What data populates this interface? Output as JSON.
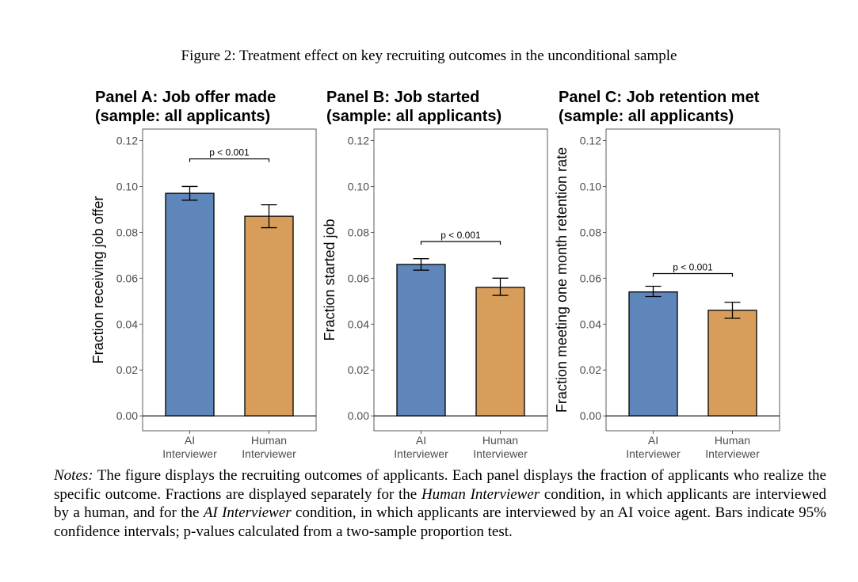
{
  "figure": {
    "caption": "Figure 2: Treatment effect on key recruiting outcomes in the unconditional sample"
  },
  "colors": {
    "ai_bar": "#5f86ba",
    "human_bar": "#d99d5b"
  },
  "chart_data": [
    {
      "type": "bar",
      "title_line1": "Panel A: Job offer made",
      "title_line2": "(sample: all applicants)",
      "ylabel": "Fraction receiving job offer",
      "ylim": [
        -0.0065,
        0.125
      ],
      "yticks": [
        "0.00",
        "0.02",
        "0.04",
        "0.06",
        "0.08",
        "0.10",
        "0.12"
      ],
      "categories": [
        [
          "AI",
          "Interviewer"
        ],
        [
          "Human",
          "Interviewer"
        ]
      ],
      "values": [
        0.097,
        0.087
      ],
      "ci_low": [
        0.094,
        0.082
      ],
      "ci_high": [
        0.1,
        0.092
      ],
      "annotation": "p < 0.001",
      "annotation_y": 0.112
    },
    {
      "type": "bar",
      "title_line1": "Panel B: Job started",
      "title_line2": "(sample: all applicants)",
      "ylabel": "Fraction started job",
      "ylim": [
        -0.0065,
        0.125
      ],
      "yticks": [
        "0.00",
        "0.02",
        "0.04",
        "0.06",
        "0.08",
        "0.10",
        "0.12"
      ],
      "categories": [
        [
          "AI",
          "Interviewer"
        ],
        [
          "Human",
          "Interviewer"
        ]
      ],
      "values": [
        0.066,
        0.056
      ],
      "ci_low": [
        0.0635,
        0.0525
      ],
      "ci_high": [
        0.0685,
        0.06
      ],
      "annotation": "p < 0.001",
      "annotation_y": 0.076
    },
    {
      "type": "bar",
      "title_line1": "Panel C: Job retention met",
      "title_line2": "(sample: all applicants)",
      "ylabel": "Fraction meeting one month retention rate",
      "ylim": [
        -0.0065,
        0.125
      ],
      "yticks": [
        "0.00",
        "0.02",
        "0.04",
        "0.06",
        "0.08",
        "0.10",
        "0.12"
      ],
      "categories": [
        [
          "AI",
          "Interviewer"
        ],
        [
          "Human",
          "Interviewer"
        ]
      ],
      "values": [
        0.054,
        0.046
      ],
      "ci_low": [
        0.052,
        0.0425
      ],
      "ci_high": [
        0.0565,
        0.0495
      ],
      "annotation": "p < 0.001",
      "annotation_y": 0.062
    }
  ],
  "notes": {
    "label": "Notes:",
    "text1": " The figure displays the recruiting outcomes of applicants. Each panel displays the fraction of applicants who realize the specific outcome. Fractions are displayed separately for the ",
    "ital1": "Human Interviewer",
    "text2": " condition, in which applicants are interviewed by a human, and for the ",
    "ital2": "AI Interviewer",
    "text3": " condition, in which applicants are interviewed by an AI voice agent. Bars indicate 95% confidence intervals; p-values calculated from a two-sample proportion test."
  }
}
